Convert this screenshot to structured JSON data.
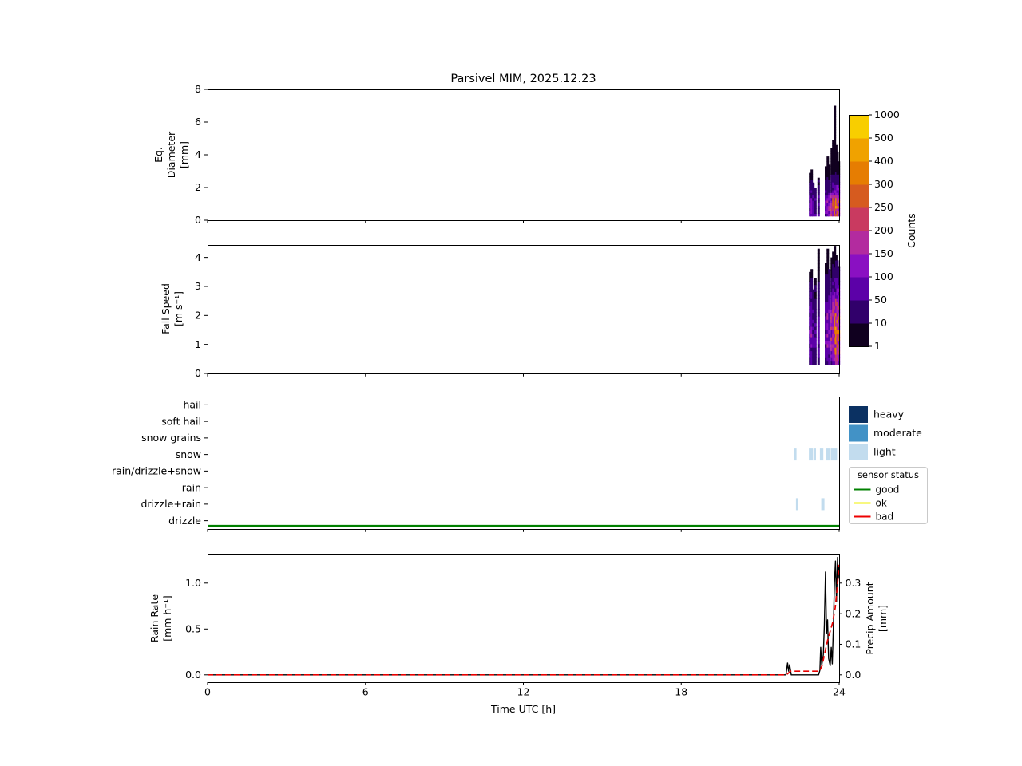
{
  "title": "Parsivel MIM, 2025.12.23",
  "x_axis": {
    "label": "Time UTC [h]",
    "lim": [
      0,
      24
    ],
    "ticks": [
      {
        "v": 0,
        "label": "0"
      },
      {
        "v": 6,
        "label": "6"
      },
      {
        "v": 12,
        "label": "12"
      },
      {
        "v": 18,
        "label": "18"
      },
      {
        "v": 24,
        "label": "24"
      }
    ]
  },
  "colorbar": {
    "label": "Counts",
    "tick_values": [
      1,
      10,
      50,
      100,
      150,
      200,
      250,
      300,
      400,
      500,
      1000
    ],
    "ticks": [
      "1",
      "10",
      "50",
      "100",
      "150",
      "200",
      "250",
      "300",
      "400",
      "500",
      "1000"
    ],
    "segment_colors": [
      "#10001f",
      "#31006b",
      "#5c01a8",
      "#8a10c2",
      "#b32b9f",
      "#c93a60",
      "#d65b1f",
      "#e67d02",
      "#f0a200",
      "#f8ce00"
    ]
  },
  "legends": {
    "intensity": {
      "entries": [
        {
          "label": "heavy",
          "color": "#0b3162"
        },
        {
          "label": "moderate",
          "color": "#4292c6"
        },
        {
          "label": "light",
          "color": "#c2dcee"
        }
      ]
    },
    "sensor": {
      "title": "sensor status",
      "entries": [
        {
          "label": "good",
          "color": "#008000"
        },
        {
          "label": "ok",
          "color": "#f0f000"
        },
        {
          "label": "bad",
          "color": "#ee0000"
        }
      ]
    }
  },
  "chart_data": [
    {
      "id": "eq-diameter",
      "type": "heatmap",
      "ylabel_lines": [
        "Eq.",
        "Diameter",
        "[mm]"
      ],
      "ylim": [
        0,
        8
      ],
      "yticks": [
        {
          "v": 0,
          "label": "0"
        },
        {
          "v": 2,
          "label": "2"
        },
        {
          "v": 4,
          "label": "4"
        },
        {
          "v": 6,
          "label": "6"
        },
        {
          "v": 8,
          "label": "8"
        }
      ],
      "profile": {
        "base": 0.25,
        "bin": 0.16,
        "peak_pos": 0.7,
        "decay": 1.15
      },
      "columns": [
        {
          "t": 22.9,
          "w": 0.07,
          "max": 2.9,
          "peak": 70
        },
        {
          "t": 22.96,
          "w": 0.07,
          "max": 3.1,
          "peak": 110
        },
        {
          "t": 23.02,
          "w": 0.06,
          "max": 2.3,
          "peak": 60
        },
        {
          "t": 23.1,
          "w": 0.06,
          "max": 2.0,
          "peak": 45
        },
        {
          "t": 23.22,
          "w": 0.06,
          "max": 2.6,
          "peak": 55
        },
        {
          "t": 23.5,
          "w": 0.07,
          "max": 3.3,
          "peak": 90
        },
        {
          "t": 23.57,
          "w": 0.07,
          "max": 3.9,
          "peak": 120
        },
        {
          "t": 23.63,
          "w": 0.07,
          "max": 3.4,
          "peak": 110
        },
        {
          "t": 23.72,
          "w": 0.07,
          "max": 4.4,
          "peak": 160
        },
        {
          "t": 23.78,
          "w": 0.07,
          "max": 4.9,
          "peak": 210
        },
        {
          "t": 23.84,
          "w": 0.05,
          "max": 7.0,
          "peak": 240
        },
        {
          "t": 23.89,
          "w": 0.07,
          "max": 4.6,
          "peak": 300
        },
        {
          "t": 23.94,
          "w": 0.07,
          "max": 4.2,
          "peak": 280
        },
        {
          "t": 23.99,
          "w": 0.05,
          "max": 3.6,
          "peak": 240
        }
      ]
    },
    {
      "id": "fall-speed",
      "type": "heatmap",
      "ylabel_lines": [
        "Fall Speed",
        "[m s⁻¹]"
      ],
      "ylim": [
        0,
        4.43
      ],
      "yticks": [
        {
          "v": 0,
          "label": "0"
        },
        {
          "v": 1,
          "label": "1"
        },
        {
          "v": 2,
          "label": "2"
        },
        {
          "v": 3,
          "label": "3"
        },
        {
          "v": 4,
          "label": "4"
        }
      ],
      "profile": {
        "base": 0.3,
        "bin": 0.12,
        "peak_pos": 1.4,
        "decay": 1.3
      },
      "columns": [
        {
          "t": 22.9,
          "w": 0.07,
          "max": 3.5,
          "peak": 70
        },
        {
          "t": 22.96,
          "w": 0.07,
          "max": 3.6,
          "peak": 110
        },
        {
          "t": 23.02,
          "w": 0.06,
          "max": 2.9,
          "peak": 60
        },
        {
          "t": 23.1,
          "w": 0.06,
          "max": 3.3,
          "peak": 45
        },
        {
          "t": 23.22,
          "w": 0.06,
          "max": 4.3,
          "peak": 55
        },
        {
          "t": 23.5,
          "w": 0.07,
          "max": 3.8,
          "peak": 90
        },
        {
          "t": 23.57,
          "w": 0.07,
          "max": 4.3,
          "peak": 120
        },
        {
          "t": 23.63,
          "w": 0.07,
          "max": 3.6,
          "peak": 110
        },
        {
          "t": 23.72,
          "w": 0.07,
          "max": 4.0,
          "peak": 160
        },
        {
          "t": 23.78,
          "w": 0.07,
          "max": 4.2,
          "peak": 210
        },
        {
          "t": 23.84,
          "w": 0.05,
          "max": 4.4,
          "peak": 240
        },
        {
          "t": 23.89,
          "w": 0.07,
          "max": 4.1,
          "peak": 300
        },
        {
          "t": 23.94,
          "w": 0.07,
          "max": 3.9,
          "peak": 280
        },
        {
          "t": 23.99,
          "w": 0.05,
          "max": 3.7,
          "peak": 240
        }
      ]
    },
    {
      "id": "precip-type",
      "type": "category-events",
      "categories": [
        "hail",
        "soft hail",
        "snow grains",
        "snow",
        "rain/drizzle+snow",
        "rain",
        "drizzle+rain",
        "drizzle"
      ],
      "marks": [
        {
          "row": "snow",
          "t0": 22.3,
          "t1": 22.38,
          "intensity": "light"
        },
        {
          "row": "snow",
          "t0": 22.85,
          "t1": 23.0,
          "intensity": "light"
        },
        {
          "row": "snow",
          "t0": 23.02,
          "t1": 23.12,
          "intensity": "light"
        },
        {
          "row": "snow",
          "t0": 23.27,
          "t1": 23.4,
          "intensity": "light"
        },
        {
          "row": "snow",
          "t0": 23.5,
          "t1": 23.66,
          "intensity": "light"
        },
        {
          "row": "snow",
          "t0": 23.68,
          "t1": 23.92,
          "intensity": "light"
        },
        {
          "row": "drizzle+rain",
          "t0": 22.36,
          "t1": 22.42,
          "intensity": "light"
        },
        {
          "row": "drizzle+rain",
          "t0": 23.32,
          "t1": 23.44,
          "intensity": "light"
        }
      ],
      "sensor_status": [
        {
          "status": "good",
          "t0": 0,
          "t1": 24
        }
      ]
    },
    {
      "id": "rain-rate",
      "type": "line",
      "ylabel_lines": [
        "Rain Rate",
        "[mm h⁻¹]"
      ],
      "ylim_left": [
        -0.08,
        1.32
      ],
      "yticks_left": [
        {
          "v": 0,
          "label": "0.0"
        },
        {
          "v": 0.5,
          "label": "0.5"
        },
        {
          "v": 1,
          "label": "1.0"
        }
      ],
      "ylabel_right_lines": [
        "Precip Amount",
        "[mm]"
      ],
      "ylim_right": [
        -0.024,
        0.396
      ],
      "yticks_right": [
        {
          "v": 0,
          "label": "0.0"
        },
        {
          "v": 0.1,
          "label": "0.1"
        },
        {
          "v": 0.2,
          "label": "0.2"
        },
        {
          "v": 0.3,
          "label": "0.3"
        }
      ],
      "series": [
        {
          "name": "rain_rate",
          "axis": "left",
          "color": "#000000",
          "style": "solid",
          "points": [
            [
              0,
              0
            ],
            [
              21.98,
              0
            ],
            [
              22.04,
              0.13
            ],
            [
              22.08,
              0.04
            ],
            [
              22.12,
              0.11
            ],
            [
              22.18,
              0
            ],
            [
              23.22,
              0
            ],
            [
              23.27,
              0.05
            ],
            [
              23.3,
              0.3
            ],
            [
              23.34,
              0.1
            ],
            [
              23.4,
              0.22
            ],
            [
              23.44,
              0.55
            ],
            [
              23.48,
              1.12
            ],
            [
              23.52,
              0.45
            ],
            [
              23.56,
              0.6
            ],
            [
              23.6,
              0.18
            ],
            [
              23.66,
              0.1
            ],
            [
              23.7,
              0.3
            ],
            [
              23.74,
              0.12
            ],
            [
              23.78,
              0.5
            ],
            [
              23.82,
              1.0
            ],
            [
              23.86,
              1.24
            ],
            [
              23.9,
              0.8
            ],
            [
              23.94,
              1.28
            ],
            [
              23.97,
              1.05
            ],
            [
              24,
              1.18
            ]
          ]
        },
        {
          "name": "precip_amount",
          "axis": "right",
          "color": "#e80000",
          "style": "dashed",
          "points": [
            [
              0,
              0
            ],
            [
              22.0,
              0
            ],
            [
              22.15,
              0.012
            ],
            [
              23.25,
              0.012
            ],
            [
              23.35,
              0.03
            ],
            [
              23.45,
              0.07
            ],
            [
              23.55,
              0.11
            ],
            [
              23.65,
              0.14
            ],
            [
              23.75,
              0.17
            ],
            [
              23.85,
              0.22
            ],
            [
              23.92,
              0.28
            ],
            [
              24,
              0.36
            ]
          ]
        }
      ]
    }
  ]
}
